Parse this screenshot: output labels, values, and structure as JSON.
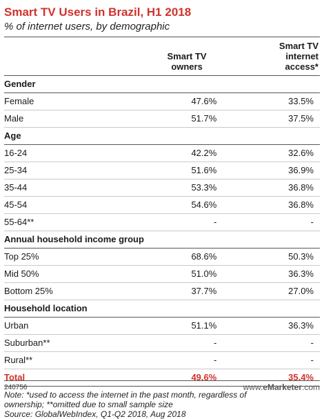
{
  "chart_data": {
    "type": "table",
    "title": "Smart TV Users in Brazil, H1 2018",
    "subtitle": "% of internet users, by demographic",
    "columns": [
      "",
      "Smart TV owners",
      "Smart TV internet access*"
    ],
    "sections": [
      {
        "name": "Gender",
        "rows": [
          {
            "label": "Female",
            "owners": "47.6%",
            "access": "33.5%"
          },
          {
            "label": "Male",
            "owners": "51.7%",
            "access": "37.5%"
          }
        ]
      },
      {
        "name": "Age",
        "rows": [
          {
            "label": "16-24",
            "owners": "42.2%",
            "access": "32.6%"
          },
          {
            "label": "25-34",
            "owners": "51.6%",
            "access": "36.9%"
          },
          {
            "label": "35-44",
            "owners": "53.3%",
            "access": "36.8%"
          },
          {
            "label": "45-54",
            "owners": "54.6%",
            "access": "36.8%"
          },
          {
            "label": "55-64**",
            "owners": "-",
            "access": "-"
          }
        ]
      },
      {
        "name": "Annual household income group",
        "rows": [
          {
            "label": "Top 25%",
            "owners": "68.6%",
            "access": "50.3%"
          },
          {
            "label": "Mid 50%",
            "owners": "51.0%",
            "access": "36.3%"
          },
          {
            "label": "Bottom 25%",
            "owners": "37.7%",
            "access": "27.0%"
          }
        ]
      },
      {
        "name": "Household location",
        "rows": [
          {
            "label": "Urban",
            "owners": "51.1%",
            "access": "36.3%"
          },
          {
            "label": "Suburban**",
            "owners": "-",
            "access": "-"
          },
          {
            "label": "Rural**",
            "owners": "-",
            "access": "-"
          }
        ]
      }
    ],
    "total": {
      "label": "Total",
      "owners": "49.6%",
      "access": "35.4%"
    }
  },
  "header": {
    "col1_line1": "Smart TV",
    "col1_line2": "owners",
    "col2_line1": "Smart TV",
    "col2_line2": "internet",
    "col2_line3": "access*"
  },
  "note": {
    "line1": "Note: *used to access the internet in the past month, regardless of",
    "line2": "ownership; **omitted due to small sample size",
    "line3": "Source: GlobalWebIndex, Q1-Q2 2018, Aug 2018"
  },
  "footer": {
    "code": "240756",
    "brand_prefix": "www.",
    "brand_name": "eMarketer",
    "brand_suffix": ".com"
  },
  "colors": {
    "accent": "#d1322c",
    "rule": "#555555",
    "rowline": "#c9c9c9"
  }
}
